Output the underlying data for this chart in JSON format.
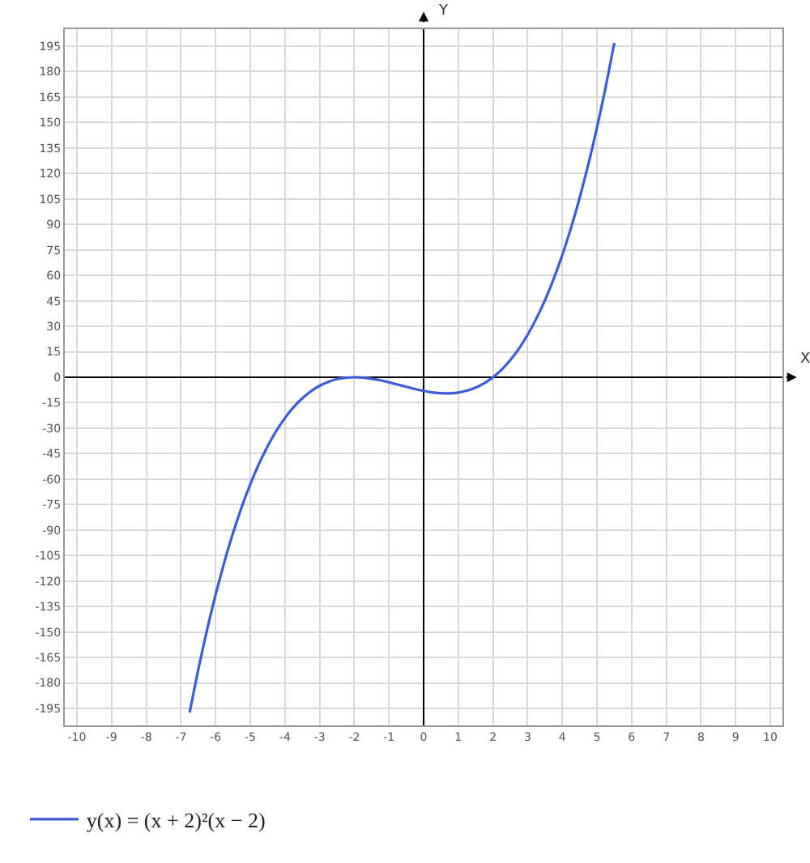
{
  "chart_data": {
    "type": "line",
    "xlabel": "X",
    "ylabel": "Y",
    "x": [
      -6.75,
      -6.5,
      -6.25,
      -6,
      -5.75,
      -5.5,
      -5.25,
      -5,
      -4.75,
      -4.5,
      -4.25,
      -4,
      -3.75,
      -3.5,
      -3.25,
      -3,
      -2.75,
      -2.5,
      -2.25,
      -2,
      -1.75,
      -1.5,
      -1.25,
      -1,
      -0.75,
      -0.5,
      -0.25,
      0,
      0.25,
      0.5,
      0.75,
      1,
      1.25,
      1.5,
      1.75,
      2,
      2.25,
      2.5,
      2.75,
      3,
      3.25,
      3.5,
      3.75,
      4,
      4.25,
      4.5,
      4.75,
      5,
      5.25,
      5.5
    ],
    "series": [
      {
        "name": "y(x) = (x + 2)²(x − 2)",
        "color": "#3b5bd9",
        "values": [
          -197.4,
          -172.1,
          -149.0,
          -128,
          -109.0,
          -91.9,
          -76.6,
          -63,
          -51.0,
          -40.6,
          -31.6,
          -24,
          -17.6,
          -12.4,
          -8.2,
          -5,
          -2.7,
          -1.1,
          -0.3,
          0,
          -0.2,
          -0.9,
          -1.8,
          -3,
          -4.3,
          -5.6,
          -6.9,
          -8,
          -8.9,
          -9.4,
          -9.5,
          -9,
          -7.9,
          -6.1,
          -3.5,
          0,
          4.5,
          10.1,
          16.9,
          25,
          34.5,
          45.4,
          57.9,
          72,
          87.9,
          105.6,
          125.3,
          147,
          170.8,
          196.9
        ]
      }
    ],
    "xlim": [
      -10.35,
      10.35
    ],
    "xticks": [
      -10,
      -9,
      -8,
      -7,
      -6,
      -5,
      -4,
      -3,
      -2,
      -1,
      0,
      1,
      2,
      3,
      4,
      5,
      6,
      7,
      8,
      9,
      10
    ],
    "ylim": [
      -205,
      205
    ],
    "yticks": [
      -195,
      -180,
      -165,
      -150,
      -135,
      -120,
      -105,
      -90,
      -75,
      -60,
      -45,
      -30,
      -15,
      0,
      15,
      30,
      45,
      60,
      75,
      90,
      105,
      120,
      135,
      150,
      165,
      180,
      195
    ],
    "grid": true,
    "legend": "bottom",
    "marker": "none",
    "line_style": "solid"
  }
}
